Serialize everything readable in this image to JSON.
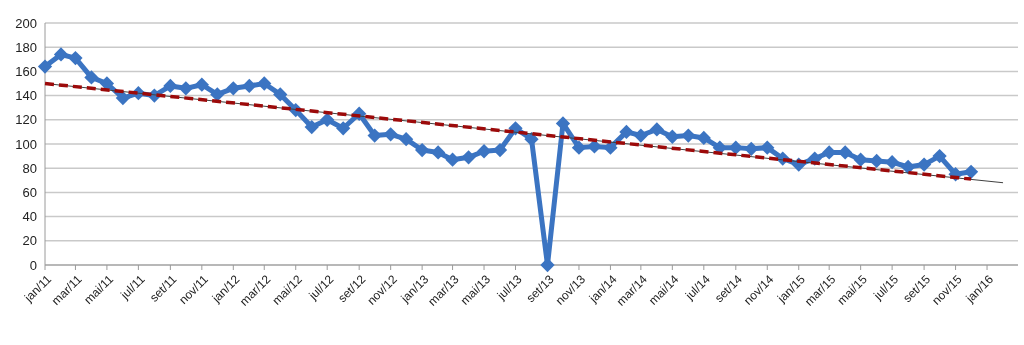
{
  "chart_data": {
    "type": "line",
    "xlim": [
      "2011-01",
      "2016-03"
    ],
    "xticks": [
      {
        "value": "2011-01",
        "label": "jan/11"
      },
      {
        "value": "2011-03",
        "label": "mar/11"
      },
      {
        "value": "2011-05",
        "label": "mai/11"
      },
      {
        "value": "2011-07",
        "label": "jul/11"
      },
      {
        "value": "2011-09",
        "label": "set/11"
      },
      {
        "value": "2011-11",
        "label": "nov/11"
      },
      {
        "value": "2012-01",
        "label": "jan/12"
      },
      {
        "value": "2012-03",
        "label": "mar/12"
      },
      {
        "value": "2012-05",
        "label": "mai/12"
      },
      {
        "value": "2012-07",
        "label": "jul/12"
      },
      {
        "value": "2012-09",
        "label": "set/12"
      },
      {
        "value": "2012-11",
        "label": "nov/12"
      },
      {
        "value": "2013-01",
        "label": "jan/13"
      },
      {
        "value": "2013-03",
        "label": "mar/13"
      },
      {
        "value": "2013-05",
        "label": "mai/13"
      },
      {
        "value": "2013-07",
        "label": "jul/13"
      },
      {
        "value": "2013-09",
        "label": "set/13"
      },
      {
        "value": "2013-11",
        "label": "nov/13"
      },
      {
        "value": "2014-01",
        "label": "jan/14"
      },
      {
        "value": "2014-03",
        "label": "mar/14"
      },
      {
        "value": "2014-05",
        "label": "mai/14"
      },
      {
        "value": "2014-07",
        "label": "jul/14"
      },
      {
        "value": "2014-09",
        "label": "set/14"
      },
      {
        "value": "2014-11",
        "label": "nov/14"
      },
      {
        "value": "2015-01",
        "label": "jan/15"
      },
      {
        "value": "2015-03",
        "label": "mar/15"
      },
      {
        "value": "2015-05",
        "label": "mai/15"
      },
      {
        "value": "2015-07",
        "label": "jul/15"
      },
      {
        "value": "2015-09",
        "label": "set/15"
      },
      {
        "value": "2015-11",
        "label": "nov/15"
      },
      {
        "value": "2016-01",
        "label": "jan/16"
      }
    ],
    "ylim": [
      0,
      200
    ],
    "yticks": [
      0,
      20,
      40,
      60,
      80,
      100,
      120,
      140,
      160,
      180,
      200
    ],
    "grid": "y",
    "series": [
      {
        "color": "#3b74c2",
        "marker": "diamond",
        "line_style": "solid",
        "x": [
          "2011-01",
          "2011-02",
          "2011-03",
          "2011-04",
          "2011-05",
          "2011-06",
          "2011-07",
          "2011-08",
          "2011-09",
          "2011-10",
          "2011-11",
          "2011-12",
          "2012-01",
          "2012-02",
          "2012-03",
          "2012-04",
          "2012-05",
          "2012-06",
          "2012-07",
          "2012-08",
          "2012-09",
          "2012-10",
          "2012-11",
          "2012-12",
          "2013-01",
          "2013-02",
          "2013-03",
          "2013-04",
          "2013-05",
          "2013-06",
          "2013-07",
          "2013-08",
          "2013-09",
          "2013-10",
          "2013-11",
          "2013-12",
          "2014-01",
          "2014-02",
          "2014-03",
          "2014-04",
          "2014-05",
          "2014-06",
          "2014-07",
          "2014-08",
          "2014-09",
          "2014-10",
          "2014-11",
          "2014-12",
          "2015-01",
          "2015-02",
          "2015-03",
          "2015-04",
          "2015-05",
          "2015-06",
          "2015-07",
          "2015-08",
          "2015-09",
          "2015-10",
          "2015-11",
          "2015-12"
        ],
        "values": [
          164,
          174,
          171,
          155,
          150,
          138,
          142,
          140,
          148,
          146,
          149,
          141,
          146,
          148,
          150,
          141,
          128,
          114,
          120,
          113,
          125,
          107,
          108,
          104,
          95,
          93,
          87,
          89,
          94,
          95,
          113,
          104,
          0,
          117,
          97,
          98,
          97,
          110,
          107,
          112,
          106,
          107,
          105,
          97,
          97,
          96,
          97,
          88,
          83,
          88,
          93,
          93,
          87,
          86,
          85,
          81,
          83,
          90,
          75,
          77
        ]
      },
      {
        "color": "#404040",
        "marker": "none",
        "line_style": "solid",
        "x": [
          "2011-01",
          "2016-02"
        ],
        "values": [
          150,
          68
        ]
      },
      {
        "color": "#9c0a0a",
        "marker": "none",
        "line_style": "dashed",
        "x": [
          "2011-01",
          "2015-12"
        ],
        "values": [
          150,
          71
        ]
      }
    ]
  }
}
